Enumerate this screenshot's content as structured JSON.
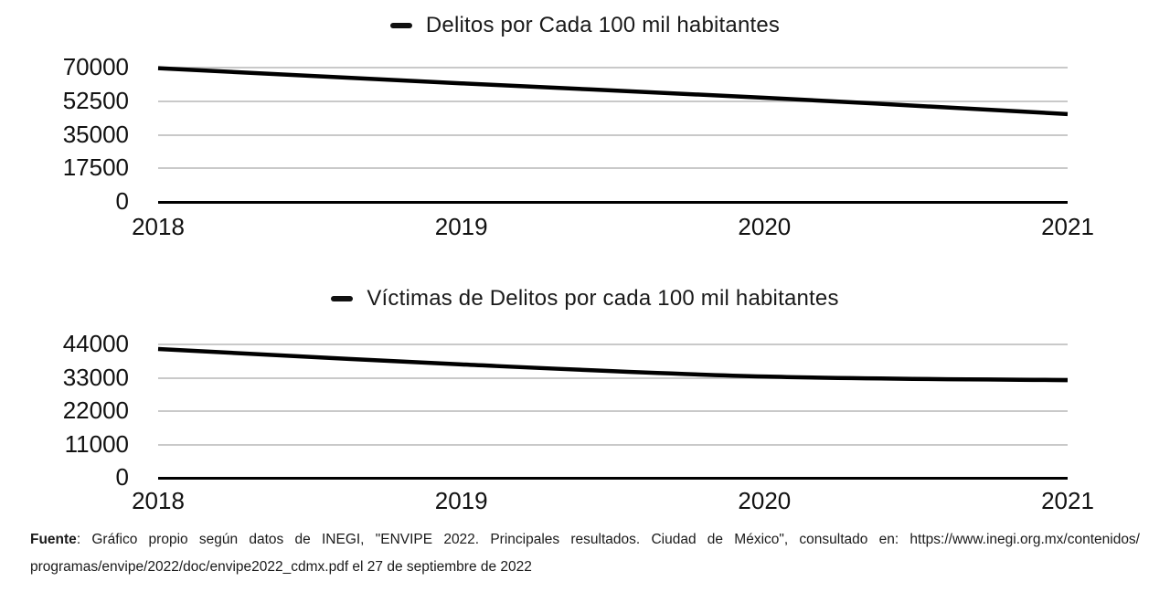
{
  "colors": {
    "line": "#000000",
    "grid": "#c9c9c9",
    "axis": "#000000",
    "text": "#000000",
    "background": "#ffffff"
  },
  "chart_data": [
    {
      "type": "line",
      "title": "Delitos por Cada 100 mil habitantes",
      "categories": [
        "2018",
        "2019",
        "2020",
        "2021"
      ],
      "values": [
        69700,
        61800,
        54300,
        45800
      ],
      "xlabel": "",
      "ylabel": "",
      "ylim": [
        0,
        70000
      ],
      "yticks": [
        0,
        17500,
        35000,
        52500,
        70000
      ],
      "grid": true,
      "legend_position": "top",
      "series_color": "#000000"
    },
    {
      "type": "line",
      "title": "Víctimas de Delitos por cada 100 mil habitantes",
      "categories": [
        "2018",
        "2019",
        "2020",
        "2021"
      ],
      "values": [
        42500,
        37400,
        33400,
        32200
      ],
      "xlabel": "",
      "ylabel": "",
      "ylim": [
        0,
        44000
      ],
      "yticks": [
        0,
        11000,
        22000,
        33000,
        44000
      ],
      "grid": true,
      "legend_position": "top",
      "series_color": "#000000"
    }
  ],
  "footer": {
    "source_label": "Fuente",
    "line1_rest": ": Gráfico propio según datos de INEGI, \"ENVIPE 2022. Principales resultados. Ciudad de México\", consultado en: https://www.inegi.org.mx/contenidos/",
    "line2": "programas/envipe/2022/doc/envipe2022_cdmx.pdf el 27 de septiembre de 2022"
  }
}
